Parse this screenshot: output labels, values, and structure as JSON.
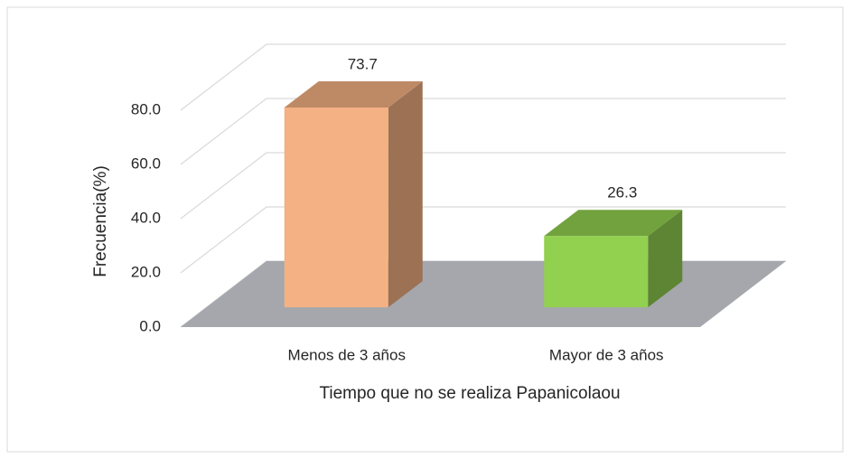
{
  "chart_data": {
    "type": "bar",
    "xlabel": "Tiempo que no se realiza Papanicolaou",
    "ylabel": "Frecuencia(%)",
    "categories": [
      "Menos de 3 años",
      "Mayor de 3 años"
    ],
    "values": [
      73.7,
      26.3
    ],
    "colors": [
      "#F4B183",
      "#92D050"
    ],
    "ylim": [
      0,
      80
    ],
    "yticks": [
      {
        "value": 0,
        "label": "0.0"
      },
      {
        "value": 20,
        "label": "20.0"
      },
      {
        "value": 40,
        "label": "40.0"
      },
      {
        "value": 60,
        "label": "60.0"
      },
      {
        "value": 80,
        "label": "80.0"
      }
    ],
    "grid": true
  }
}
